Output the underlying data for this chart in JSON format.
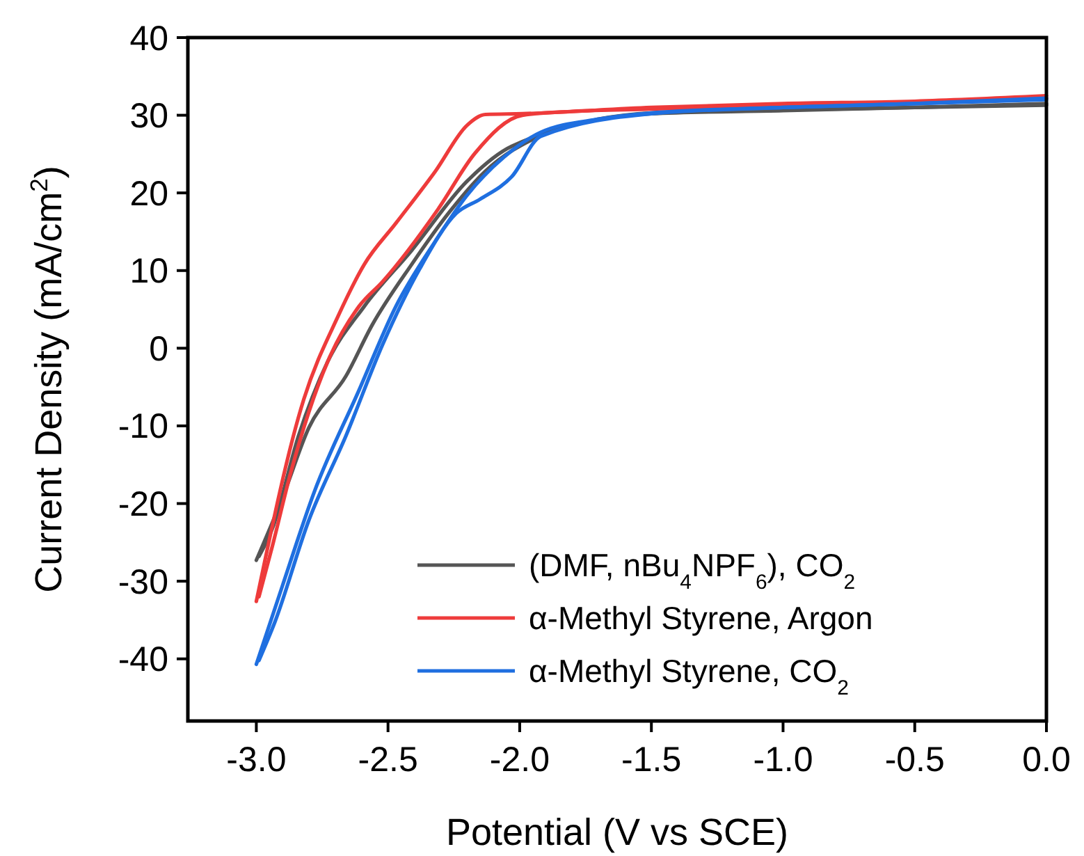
{
  "chart_data": {
    "type": "line",
    "xlabel": "Potential (V vs SCE)",
    "ylabel": "Current Density (mA/cm$^{2}$)",
    "xlim": [
      -3.26,
      0
    ],
    "ylim": [
      -48,
      40
    ],
    "xticks": [
      {
        "value": -3,
        "label": "-3.0"
      },
      {
        "value": -2.5,
        "label": "-2.5"
      },
      {
        "value": -2,
        "label": "-2.0"
      },
      {
        "value": -1.5,
        "label": "-1.5"
      },
      {
        "value": -1,
        "label": "-1.0"
      },
      {
        "value": -0.5,
        "label": "-0.5"
      },
      {
        "value": 0,
        "label": "0.0"
      }
    ],
    "yticks": [
      -40,
      -30,
      -20,
      -10,
      0,
      10,
      20,
      30,
      40
    ],
    "grid": false,
    "legend": "bottom right",
    "line_style": "solid",
    "marker": "none",
    "series": [
      {
        "name": "(DMF, nBu$_{4}$NPF$_{6}$), CO$_{2}$",
        "color": "#555555",
        "x": [
          -3.0,
          -2.9,
          -2.8,
          -2.66,
          -2.56,
          -2.41,
          -2.27,
          -2.13,
          -1.92,
          -1.7,
          -1.5,
          -1.0,
          -0.5,
          0
        ],
        "values": [
          -27.3,
          -19.2,
          -10.2,
          -3.6,
          3.0,
          10.8,
          17.4,
          22.8,
          27.4,
          29.5,
          30.3,
          30.7,
          31.0,
          31.5
        ]
      },
      {
        "color": "#555555",
        "x": [
          -2.99,
          -2.94,
          -2.84,
          -2.73,
          -2.59,
          -2.41,
          -2.2,
          -2.03,
          -1.5,
          -1.0,
          -0.5,
          0
        ],
        "values": [
          -26.8,
          -23.3,
          -11.3,
          -1.8,
          5.4,
          12.6,
          21.5,
          26.0,
          30.2,
          30.6,
          31.0,
          31.3
        ]
      },
      {
        "name": "α-Methyl Styrene, Argon",
        "color": "#ee3b3b",
        "x": [
          -3.0,
          -2.82,
          -2.69,
          -2.59,
          -2.47,
          -2.32,
          -2.2,
          -2.13,
          -1.99,
          -1.5,
          -1.0,
          -0.5,
          0
        ],
        "values": [
          -32.6,
          -6.6,
          4.1,
          10.8,
          16.1,
          22.8,
          28.7,
          30.1,
          30.2,
          31.0,
          31.5,
          31.8,
          32.5
        ]
      },
      {
        "color": "#ee3b3b",
        "x": [
          -2.99,
          -2.94,
          -2.87,
          -2.73,
          -2.61,
          -2.52,
          -2.31,
          -2.17,
          -1.99,
          -1.8,
          -1.5,
          -1.0,
          -0.5,
          0
        ],
        "values": [
          -32.0,
          -25.6,
          -16.1,
          -1.8,
          5.4,
          8.6,
          17.9,
          25.1,
          30.0,
          30.5,
          30.8,
          31.3,
          31.6,
          32.2
        ]
      },
      {
        "name": "α-Methyl Styrene, CO$_{2}$",
        "color": "#1f6fe0",
        "x": [
          -3.0,
          -2.9,
          -2.78,
          -2.61,
          -2.47,
          -2.32,
          -2.2,
          -2.06,
          -1.92,
          -1.7,
          -1.5,
          -1.0,
          -0.5,
          0
        ],
        "values": [
          -40.7,
          -30.5,
          -18.5,
          -5.4,
          5.4,
          13.8,
          19.7,
          24.6,
          27.8,
          29.5,
          30.3,
          31.0,
          31.5,
          32.2
        ]
      },
      {
        "color": "#1f6fe0",
        "x": [
          -2.99,
          -2.93,
          -2.8,
          -2.66,
          -2.52,
          -2.38,
          -2.24,
          -2.15,
          -2.03,
          -1.92,
          -1.5,
          -1.0,
          -0.5,
          0
        ],
        "values": [
          -40.2,
          -35.3,
          -22.1,
          -11.3,
          0.5,
          10.2,
          17.4,
          19.2,
          22.1,
          27.3,
          30.2,
          31.0,
          31.5,
          32.0
        ]
      }
    ]
  }
}
